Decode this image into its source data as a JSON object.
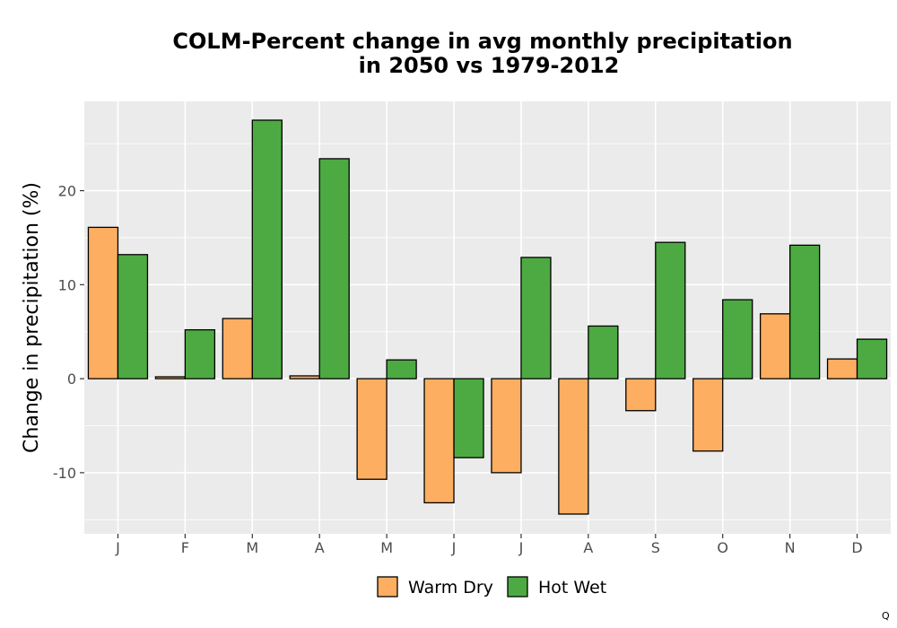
{
  "chart_data": {
    "type": "bar",
    "title_line1": "COLM-Percent change in avg monthly precipitation",
    "title_line2": "in 2050 vs 1979-2012",
    "xlabel": "",
    "ylabel": "Change in precipitation (%)",
    "ylim": [
      -16.5,
      29.5
    ],
    "yticks": [
      -10,
      0,
      10,
      20
    ],
    "ytick_labels": [
      "-10",
      "0",
      "10",
      "20"
    ],
    "categories": [
      "J",
      "F",
      "M",
      "A",
      "M",
      "J",
      "J",
      "A",
      "S",
      "O",
      "N",
      "D"
    ],
    "series": [
      {
        "name": "Warm Dry",
        "color": "#fdae61",
        "values": [
          16.1,
          0.2,
          6.4,
          0.3,
          -10.7,
          -13.2,
          -10.0,
          -14.4,
          -3.4,
          -7.7,
          6.9,
          2.1
        ]
      },
      {
        "name": "Hot Wet",
        "color": "#4daa42",
        "values": [
          13.2,
          5.2,
          27.5,
          23.4,
          2.0,
          -8.4,
          12.9,
          5.6,
          14.5,
          8.4,
          14.2,
          4.2
        ]
      }
    ],
    "grid": true,
    "legend_position": "bottom"
  },
  "corner_mark": "Q"
}
